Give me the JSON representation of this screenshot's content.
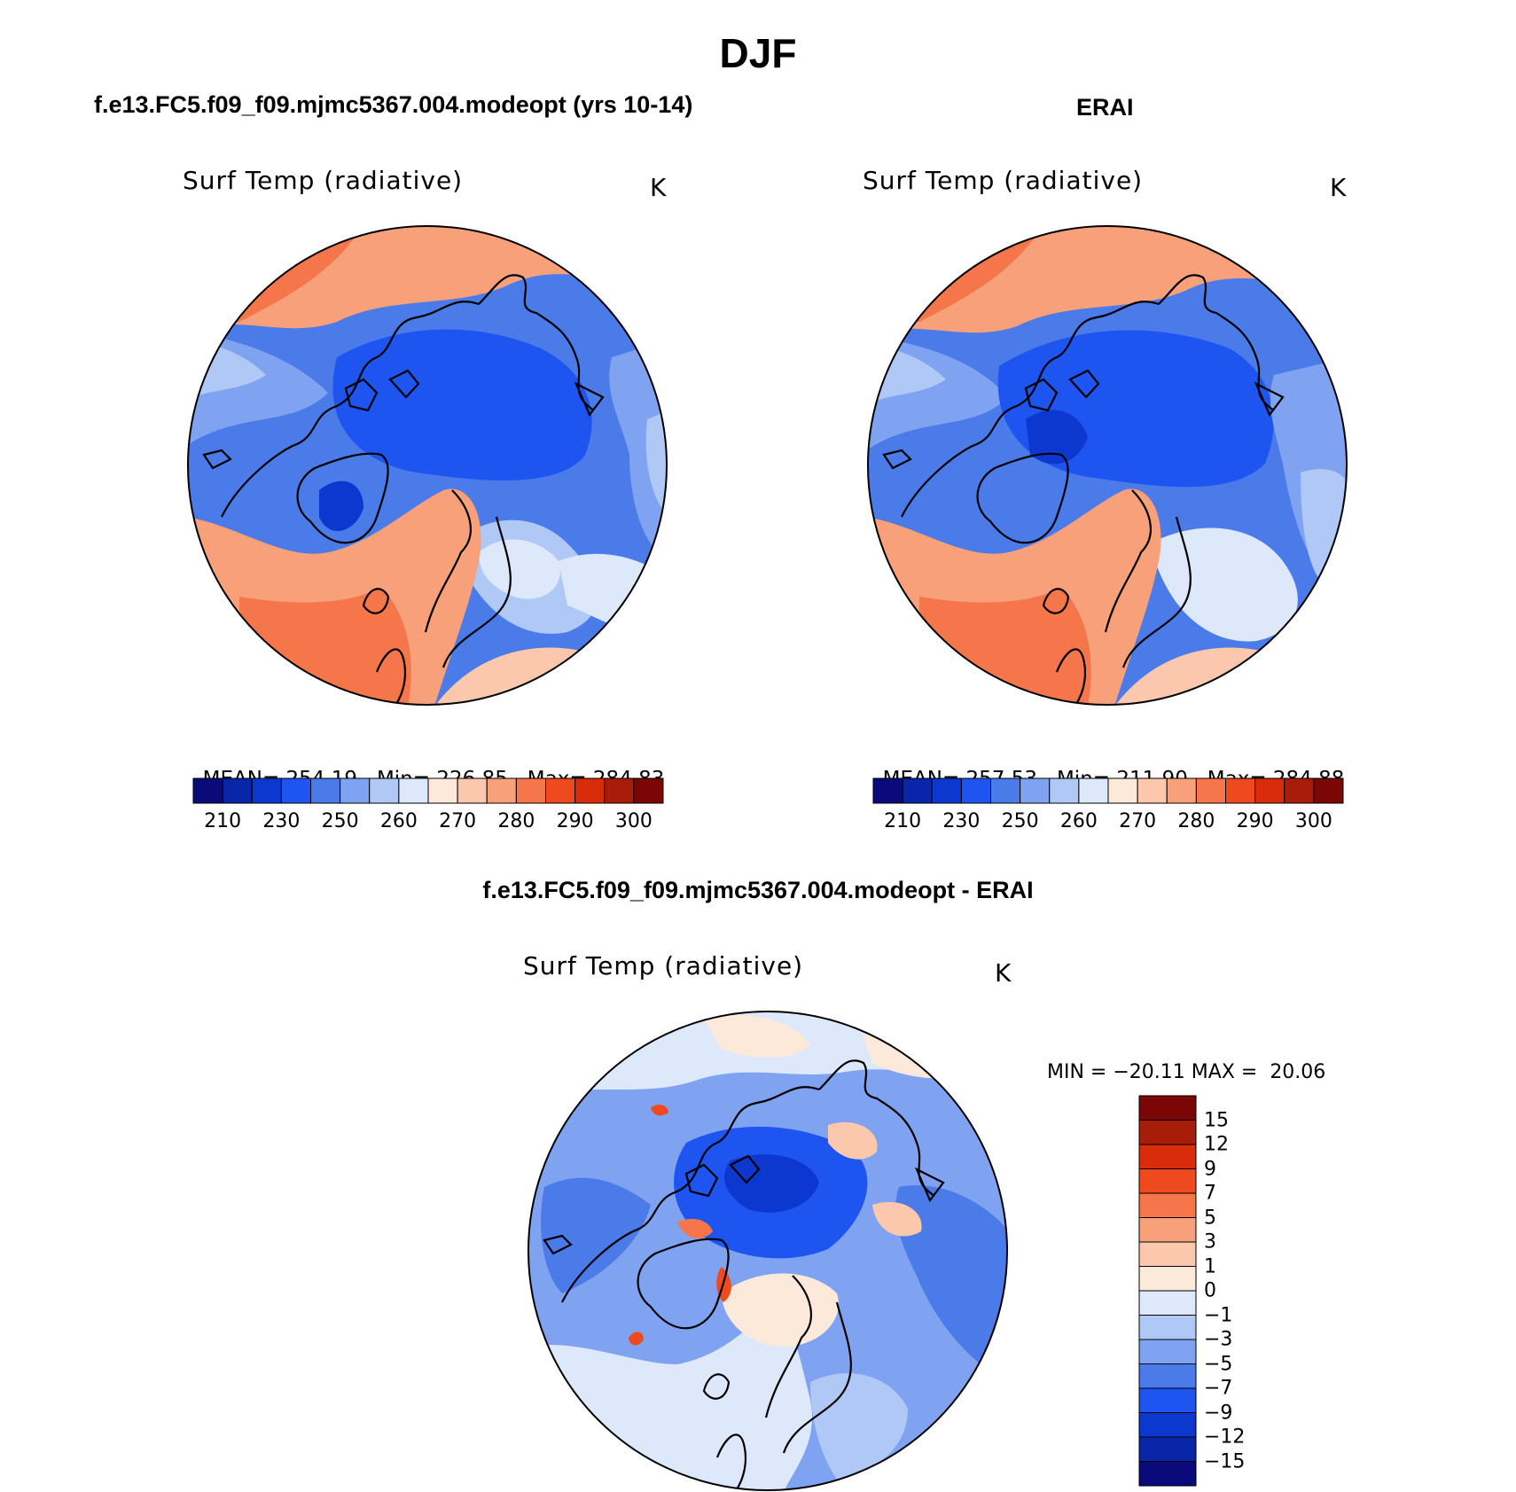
{
  "figure": {
    "title": "DJF",
    "units": "K"
  },
  "colors": {
    "sequential": [
      "#0a0a7a",
      "#0a26a8",
      "#0d38cf",
      "#1e55f0",
      "#4a7be8",
      "#7fa3f0",
      "#b0c8f5",
      "#dde9fb",
      "#fde9da",
      "#fbc8ad",
      "#f7a07a",
      "#f4764a",
      "#ef4a1e",
      "#d92c0a",
      "#a81c0a",
      "#7a0606"
    ],
    "diverging": [
      "#0a0a7a",
      "#0a26a8",
      "#0d38cf",
      "#1e55f0",
      "#4a7be8",
      "#7fa3f0",
      "#b0c8f5",
      "#dde9fb",
      "#fde9da",
      "#fbc8ad",
      "#f7a07a",
      "#f4764a",
      "#ef4a1e",
      "#d92c0a",
      "#a81c0a",
      "#7a0606"
    ]
  },
  "panels": {
    "model": {
      "case_title": "f.e13.FC5.f09_f09.mjmc5367.004.modeopt (yrs 10-14)",
      "field": "Surf Temp (radiative)",
      "units": "K",
      "stats": {
        "mean_label": "MEAN=",
        "mean": "254.19",
        "min_label": "Min=",
        "min": "226.85",
        "max_label": "Max=",
        "max": "284.83"
      }
    },
    "obs": {
      "case_title": "ERAI",
      "field": "Surf Temp (radiative)",
      "units": "K",
      "stats": {
        "mean_label": "MEAN=",
        "mean": "257.53",
        "min_label": "Min=",
        "min": "211.90",
        "max_label": "Max=",
        "max": "284.88"
      }
    },
    "diff": {
      "case_title": "f.e13.FC5.f09_f09.mjmc5367.004.modeopt - ERAI",
      "field": "Surf Temp (radiative)",
      "units": "K",
      "stats": {
        "min_label": "MIN =",
        "min": "−20.11",
        "max_label": "MAX =",
        "max": "20.06"
      }
    }
  },
  "colorbars": {
    "sequential_labels": [
      "210",
      "230",
      "250",
      "260",
      "270",
      "280",
      "290",
      "300"
    ],
    "diverging_labels": [
      "15",
      "12",
      "9",
      "7",
      "5",
      "3",
      "1",
      "0",
      "−1",
      "−3",
      "−5",
      "−7",
      "−9",
      "−12",
      "−15"
    ]
  }
}
